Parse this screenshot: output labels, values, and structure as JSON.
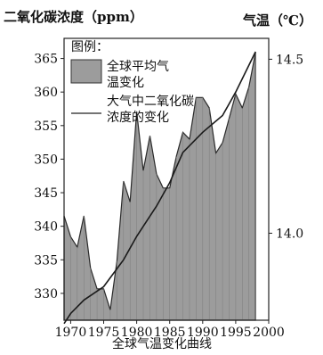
{
  "chart_data": {
    "type": "area",
    "title": "",
    "caption": "全球气温变化曲线",
    "xlabel": "",
    "ylabel_left": "二氧化碳浓度（ppm）",
    "ylabel_right": "气温（℃）",
    "x_ticks": [
      "1970",
      "1975",
      "1980",
      "1985",
      "1990",
      "1995",
      "2000"
    ],
    "y_left_ticks": [
      "365",
      "360",
      "355",
      "350",
      "345",
      "340",
      "335",
      "330"
    ],
    "y_right_ticks": [
      "14.5",
      "14.0"
    ],
    "xlim": [
      1969,
      2000
    ],
    "ylim_left": [
      326,
      368
    ],
    "ylim_right": [
      13.75,
      14.56
    ],
    "grid": false,
    "legend": {
      "position": "top-left",
      "title": "图例：",
      "entries": [
        "全球平均气温变化",
        "大气中二氧化碳浓度的变化"
      ]
    },
    "series": [
      {
        "name": "全球平均气温变化",
        "kind": "area",
        "axis": "right",
        "x": [
          1969,
          1970,
          1971,
          1972,
          1973,
          1974,
          1975,
          1976,
          1977,
          1978,
          1979,
          1980,
          1981,
          1982,
          1983,
          1984,
          1985,
          1986,
          1987,
          1988,
          1989,
          1990,
          1991,
          1992,
          1993,
          1994,
          1995,
          1996,
          1997,
          1998
        ],
        "values": [
          14.05,
          13.99,
          13.96,
          14.05,
          13.9,
          13.84,
          13.84,
          13.78,
          13.92,
          14.15,
          14.09,
          14.35,
          14.18,
          14.28,
          14.17,
          14.13,
          14.13,
          14.22,
          14.29,
          14.27,
          14.39,
          14.39,
          14.36,
          14.23,
          14.26,
          14.33,
          14.4,
          14.36,
          14.42,
          14.52
        ]
      },
      {
        "name": "大气中二氧化碳浓度的变化",
        "kind": "line",
        "axis": "left",
        "x": [
          1969,
          1970,
          1972,
          1975,
          1978,
          1980,
          1983,
          1985,
          1987,
          1990,
          1993,
          1995,
          1998
        ],
        "values": [
          325.5,
          327.0,
          329.0,
          331.0,
          335.0,
          338.5,
          343.0,
          346.5,
          351.0,
          354.0,
          356.5,
          360.0,
          366.0
        ]
      }
    ]
  }
}
